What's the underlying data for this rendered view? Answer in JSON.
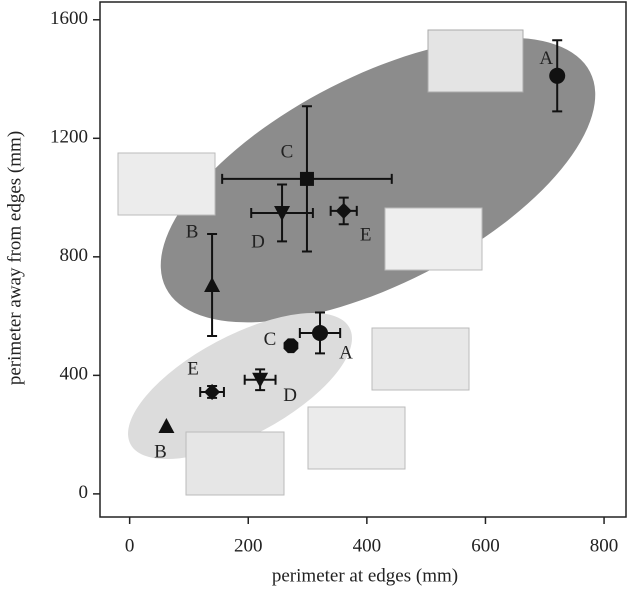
{
  "chart_data": {
    "type": "scatter",
    "xlabel": "perimeter at edges (mm)",
    "ylabel": "perimeter away from edges (mm)",
    "xlim": [
      -50,
      837
    ],
    "ylim": [
      -78,
      1660
    ],
    "xticks": [
      0,
      200,
      400,
      600,
      800
    ],
    "yticks": [
      0,
      400,
      800,
      1200,
      1600
    ],
    "color": "#111111",
    "points": [
      {
        "label": "A",
        "marker": "circle",
        "x": 721,
        "y": 1411,
        "yerr": 120
      },
      {
        "label": "C",
        "marker": "square",
        "x": 299,
        "y": 1063,
        "xerr": 143,
        "yerr": 245
      },
      {
        "label": "D",
        "marker": "triangle-down",
        "x": 257,
        "y": 948,
        "xerr": 52,
        "yerr": 96
      },
      {
        "label": "E",
        "marker": "diamond",
        "x": 361,
        "y": 955,
        "xerr": 22,
        "yerr": 45
      },
      {
        "label": "B",
        "marker": "triangle-up",
        "x": 139,
        "y": 705,
        "yerr": 172
      },
      {
        "label": "A",
        "marker": "circle",
        "x": 321,
        "y": 543,
        "xerr": 34,
        "yerr": 69
      },
      {
        "label": "C",
        "marker": "octagon",
        "x": 272,
        "y": 500
      },
      {
        "label": "D",
        "marker": "triangle-down",
        "x": 220,
        "y": 385,
        "xerr": 26,
        "yerr": 35
      },
      {
        "label": "E",
        "marker": "diamond",
        "x": 139,
        "y": 344,
        "xerr": 20,
        "yerr": 20
      },
      {
        "label": "B",
        "marker": "triangle-up",
        "x": 62,
        "y": 229
      }
    ]
  }
}
